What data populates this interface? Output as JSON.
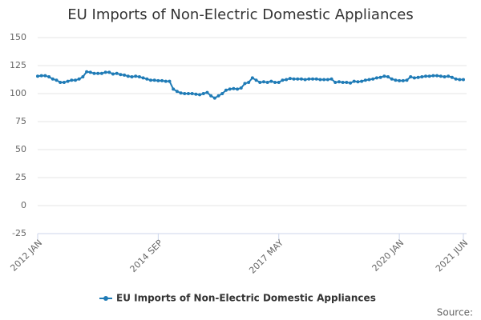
{
  "chart_data": {
    "type": "line",
    "title": "EU Imports of Non-Electric Domestic Appliances",
    "source": "Source:",
    "categories": [
      "2012 JAN",
      null,
      null,
      null,
      null,
      null,
      null,
      null,
      null,
      null,
      null,
      null,
      null,
      null,
      null,
      null,
      null,
      null,
      null,
      null,
      null,
      null,
      null,
      null,
      null,
      null,
      null,
      null,
      null,
      null,
      null,
      null,
      "2014 SEP",
      null,
      null,
      null,
      null,
      null,
      null,
      null,
      null,
      null,
      null,
      null,
      null,
      null,
      null,
      null,
      null,
      null,
      null,
      null,
      null,
      null,
      null,
      null,
      null,
      null,
      null,
      null,
      null,
      null,
      null,
      null,
      "2017 MAY",
      null,
      null,
      null,
      null,
      null,
      null,
      null,
      null,
      null,
      null,
      null,
      null,
      null,
      null,
      null,
      null,
      null,
      null,
      null,
      null,
      null,
      null,
      null,
      null,
      null,
      null,
      null,
      null,
      null,
      null,
      null,
      "2020 JAN",
      null,
      null,
      null,
      null,
      null,
      null,
      null,
      null,
      null,
      null,
      null,
      null,
      null,
      null,
      null,
      null,
      "2021 JUN"
    ],
    "series": [
      {
        "name": "EU Imports of Non-Electric Domestic Appliances",
        "color": "#1f7bb6",
        "values": [
          115.5,
          116,
          116,
          115,
          113,
          112,
          110,
          110,
          111,
          112,
          112,
          113,
          115,
          119.5,
          119,
          118,
          118,
          118,
          119,
          119,
          117.5,
          118,
          117,
          116.5,
          115.5,
          115,
          115.5,
          115,
          114,
          113,
          112,
          112,
          111.5,
          111.5,
          111,
          111,
          104,
          102,
          100.5,
          100,
          100,
          100,
          99.5,
          99,
          100,
          101,
          98,
          96,
          98,
          100,
          103,
          104,
          104.5,
          104,
          105,
          109,
          110,
          114,
          112,
          110,
          110.5,
          110,
          111,
          110,
          110,
          112,
          112.5,
          113.5,
          113,
          113,
          113,
          112.5,
          113,
          113,
          113,
          112.5,
          112.5,
          112.5,
          113,
          110,
          110.5,
          110,
          110,
          109.5,
          111,
          110.5,
          111,
          112,
          112.5,
          113,
          114,
          114.5,
          115.5,
          115,
          113,
          112,
          111.5,
          111.5,
          112,
          115,
          114,
          114.5,
          115,
          115.5,
          115.5,
          116,
          116,
          115.5,
          115,
          115.5,
          114.5,
          113,
          112.5,
          112.5
        ]
      }
    ],
    "ylim": [
      -25,
      150
    ],
    "yticks": [
      -25,
      0,
      25,
      50,
      75,
      100,
      125,
      150
    ],
    "grid": true,
    "legend": "bottom"
  }
}
